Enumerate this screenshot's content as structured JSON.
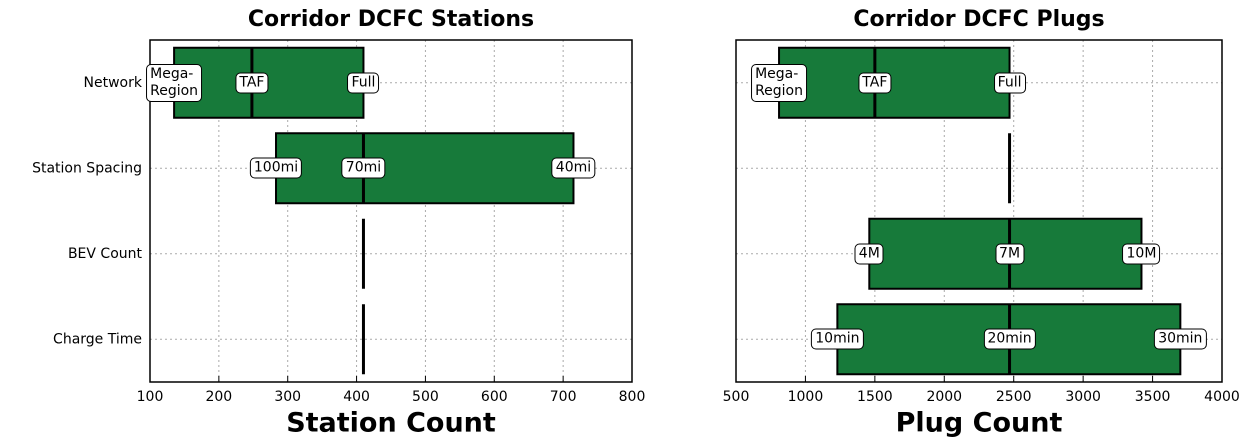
{
  "chart_data": [
    {
      "type": "range_bar",
      "title": "Corridor DCFC Stations",
      "xlabel": "Station Count",
      "categories": [
        "Network",
        "Station Spacing",
        "BEV Count",
        "Charge Time"
      ],
      "low": [
        135,
        283,
        null,
        null
      ],
      "base": [
        248,
        410,
        410,
        410
      ],
      "high": [
        410,
        715,
        null,
        null
      ],
      "low_labels": [
        "Mega-\nRegion",
        "100mi",
        null,
        null
      ],
      "base_labels": [
        "TAF",
        "70mi",
        null,
        null
      ],
      "high_labels": [
        "Full",
        "40mi",
        null,
        null
      ],
      "color": "#177a3a",
      "xlim": [
        100,
        800
      ],
      "xticks": [
        100,
        200,
        300,
        400,
        500,
        600,
        700,
        800
      ],
      "grid": true
    },
    {
      "type": "range_bar",
      "title": "Corridor DCFC Plugs",
      "xlabel": "Plug Count",
      "low": [
        810,
        null,
        1460,
        1230
      ],
      "base": [
        1500,
        2470,
        2470,
        2470
      ],
      "high": [
        2470,
        null,
        3420,
        3700
      ],
      "low_labels": [
        "Mega-\nRegion",
        null,
        "4M",
        "10min"
      ],
      "base_labels": [
        "TAF",
        null,
        "7M",
        "20min"
      ],
      "high_labels": [
        "Full",
        null,
        "10M",
        "30min"
      ],
      "color": "#177a3a",
      "xlim": [
        500,
        4000
      ],
      "xticks": [
        500,
        1000,
        1500,
        2000,
        2500,
        3000,
        3500,
        4000
      ],
      "grid": true
    }
  ]
}
